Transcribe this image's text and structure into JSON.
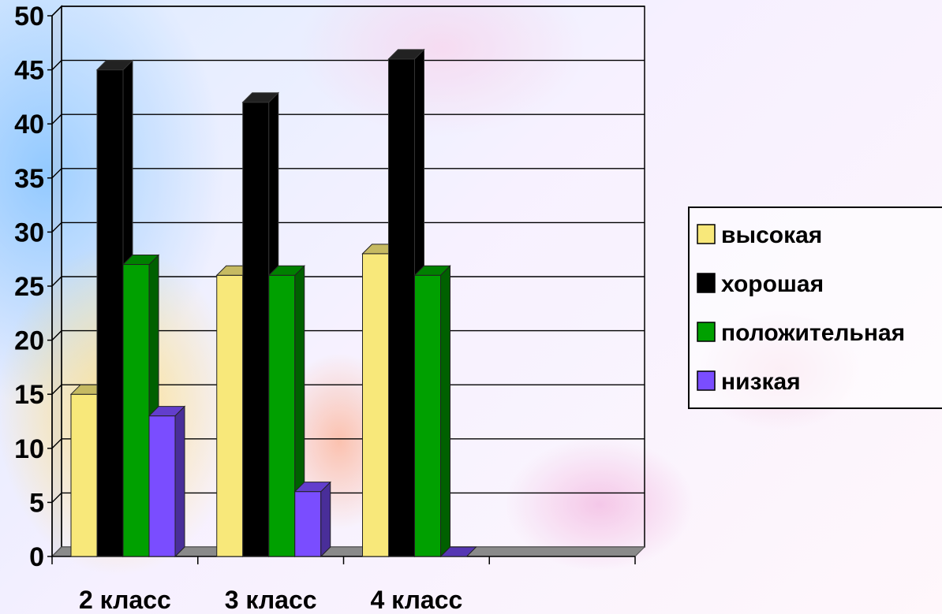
{
  "chart_data": {
    "type": "bar",
    "categories": [
      "2 класс",
      "3 класс",
      "4 класс"
    ],
    "series": [
      {
        "name": "высокая",
        "values": [
          15,
          26,
          28
        ],
        "color": "#f8e87a"
      },
      {
        "name": "хорошая",
        "values": [
          45,
          42,
          46
        ],
        "color": "#000000"
      },
      {
        "name": "положительная",
        "values": [
          27,
          26,
          26
        ],
        "color": "#00a000"
      },
      {
        "name": "низкая",
        "values": [
          13,
          6,
          0
        ],
        "color": "#7a4dff"
      }
    ],
    "yticks": [
      "0",
      "5",
      "10",
      "15",
      "20",
      "25",
      "30",
      "35",
      "40",
      "45",
      "50"
    ],
    "ylim": [
      0,
      50
    ],
    "grid": true,
    "legend": "right"
  }
}
